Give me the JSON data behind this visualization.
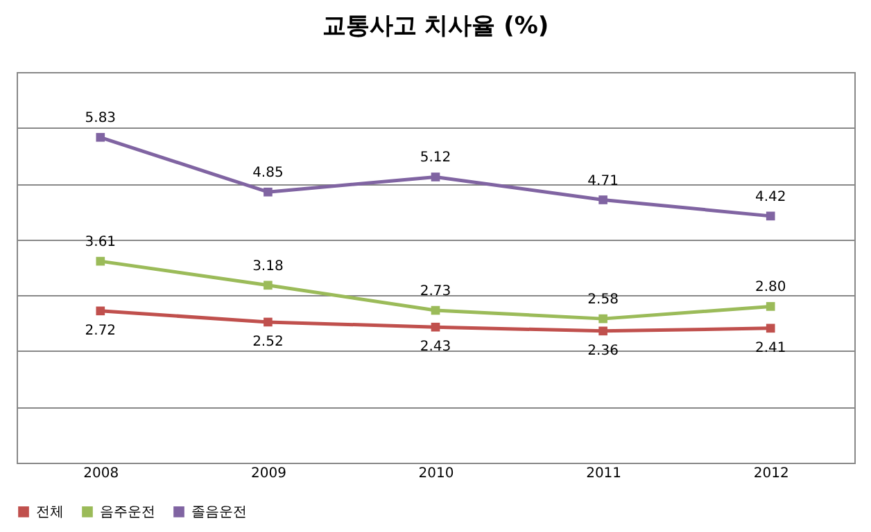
{
  "chart_data": {
    "type": "line",
    "title": "교통사고 치사율 (%)",
    "categories": [
      "2008",
      "2009",
      "2010",
      "2011",
      "2012"
    ],
    "series": [
      {
        "name": "전체",
        "color": "#c0504d",
        "values": [
          2.72,
          2.52,
          2.43,
          2.36,
          2.41
        ],
        "value_labels": [
          "2.72",
          "2.52",
          "2.43",
          "2.36",
          "2.41"
        ]
      },
      {
        "name": "음주운전",
        "color": "#9bbb59",
        "values": [
          3.61,
          3.18,
          2.73,
          2.58,
          2.8
        ],
        "value_labels": [
          "3.61",
          "3.18",
          "2.73",
          "2.58",
          "2.80"
        ]
      },
      {
        "name": "졸음운전",
        "color": "#8064a2",
        "values": [
          5.83,
          4.85,
          5.12,
          4.71,
          4.42
        ],
        "value_labels": [
          "5.83",
          "4.85",
          "5.12",
          "4.71",
          "4.42"
        ]
      }
    ],
    "ylim": [
      0,
      7
    ],
    "yticks": [
      {
        "value": 0,
        "label": null
      },
      {
        "value": 1,
        "label": null
      },
      {
        "value": 2,
        "label": null
      },
      {
        "value": 3,
        "label": null
      },
      {
        "value": 4,
        "label": null
      },
      {
        "value": 5,
        "label": null
      },
      {
        "value": 6,
        "label": null
      },
      {
        "value": 7,
        "label": null
      }
    ],
    "tick_labels": "x",
    "grid": "y",
    "legend": "bottom",
    "marker": "square",
    "line_style": "solid"
  }
}
